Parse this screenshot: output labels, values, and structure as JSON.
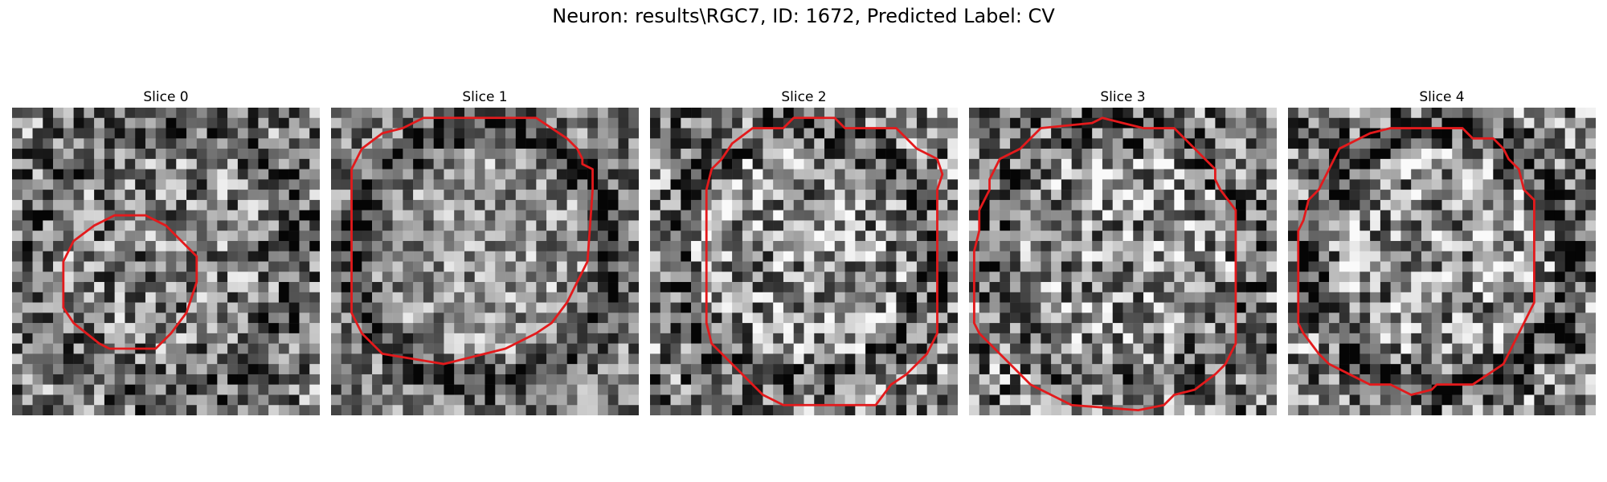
{
  "figure": {
    "suptitle": "Neuron: results\\RGC7, ID: 1672, Predicted Label: CV"
  },
  "contour_color": "#e31a1c",
  "grid_size": 30,
  "panels": [
    {
      "title": "Slice 0",
      "seed": 11,
      "contrast": 0.55,
      "ring": 0.0,
      "blob": 1,
      "contour": [
        [
          10,
          10.5
        ],
        [
          13,
          10.5
        ],
        [
          15,
          11.5
        ],
        [
          17,
          13.5
        ],
        [
          18,
          14.5
        ],
        [
          18,
          17
        ],
        [
          17,
          20
        ],
        [
          15.5,
          22
        ],
        [
          14,
          23.5
        ],
        [
          9.5,
          23.5
        ],
        [
          8.5,
          23
        ],
        [
          6,
          21
        ],
        [
          5,
          19.5
        ],
        [
          5,
          15
        ],
        [
          6,
          13
        ],
        [
          8,
          11.5
        ],
        [
          9,
          11
        ]
      ]
    },
    {
      "title": "Slice 1",
      "seed": 23,
      "contrast": 0.45,
      "ring": 0.9,
      "blob": 0,
      "contour": [
        [
          10,
          1
        ],
        [
          20,
          1
        ],
        [
          21.5,
          2
        ],
        [
          23,
          3
        ],
        [
          24,
          4
        ],
        [
          24.5,
          5
        ],
        [
          24.5,
          5.5
        ],
        [
          25.5,
          6
        ],
        [
          25.5,
          8
        ],
        [
          25,
          15
        ],
        [
          24,
          17
        ],
        [
          23,
          19
        ],
        [
          21.5,
          21
        ],
        [
          20,
          22
        ],
        [
          17,
          23.5
        ],
        [
          15,
          24
        ],
        [
          11,
          25
        ],
        [
          8,
          24.5
        ],
        [
          5,
          24
        ],
        [
          3,
          22
        ],
        [
          2,
          20
        ],
        [
          2,
          6
        ],
        [
          3,
          4
        ],
        [
          5,
          2.5
        ],
        [
          7,
          2
        ],
        [
          8,
          1.5
        ],
        [
          9,
          1
        ]
      ]
    },
    {
      "title": "Slice 2",
      "seed": 37,
      "contrast": 0.6,
      "ring": 0.6,
      "blob": 0,
      "contour": [
        [
          14,
          1
        ],
        [
          18,
          1
        ],
        [
          19,
          2
        ],
        [
          24,
          2
        ],
        [
          25,
          3
        ],
        [
          26,
          4
        ],
        [
          28,
          5
        ],
        [
          28.5,
          6.5
        ],
        [
          28,
          8
        ],
        [
          28,
          22
        ],
        [
          27,
          24
        ],
        [
          25,
          26
        ],
        [
          23.5,
          27
        ],
        [
          22,
          29
        ],
        [
          13,
          29
        ],
        [
          11,
          28
        ],
        [
          10,
          27
        ],
        [
          8,
          25
        ],
        [
          6,
          23
        ],
        [
          5.5,
          21
        ],
        [
          5.5,
          8
        ],
        [
          6,
          6
        ],
        [
          7,
          5
        ],
        [
          8,
          3.5
        ],
        [
          10,
          2
        ],
        [
          13,
          2
        ]
      ]
    },
    {
      "title": "Slice 3",
      "seed": 53,
      "contrast": 0.6,
      "ring": 0.5,
      "blob": 0,
      "contour": [
        [
          7,
          2
        ],
        [
          12,
          1.5
        ],
        [
          13,
          1
        ],
        [
          17,
          2
        ],
        [
          20,
          2
        ],
        [
          22,
          4
        ],
        [
          23,
          5
        ],
        [
          24,
          6
        ],
        [
          24,
          7
        ],
        [
          24.5,
          8
        ],
        [
          26,
          10
        ],
        [
          26,
          23
        ],
        [
          25,
          25
        ],
        [
          24,
          26
        ],
        [
          22,
          27.5
        ],
        [
          20,
          28
        ],
        [
          19,
          29
        ],
        [
          16.5,
          29.5
        ],
        [
          10,
          29
        ],
        [
          8,
          28
        ],
        [
          6,
          27
        ],
        [
          4,
          25
        ],
        [
          3,
          24
        ],
        [
          1,
          22
        ],
        [
          0.5,
          21
        ],
        [
          0.5,
          14
        ],
        [
          1,
          12
        ],
        [
          1,
          10
        ],
        [
          2,
          8
        ],
        [
          2,
          7
        ],
        [
          3,
          5
        ],
        [
          5,
          4
        ],
        [
          6,
          3
        ]
      ]
    },
    {
      "title": "Slice 4",
      "seed": 71,
      "contrast": 0.6,
      "ring": 0.85,
      "blob": 0,
      "contour": [
        [
          10,
          2
        ],
        [
          17,
          2
        ],
        [
          18,
          3
        ],
        [
          20,
          3
        ],
        [
          21,
          4
        ],
        [
          21.5,
          5
        ],
        [
          22.5,
          6
        ],
        [
          23,
          8
        ],
        [
          24,
          9
        ],
        [
          24,
          19
        ],
        [
          23,
          21
        ],
        [
          22,
          23
        ],
        [
          21,
          25
        ],
        [
          18,
          27
        ],
        [
          14.5,
          27
        ],
        [
          14,
          27.5
        ],
        [
          12,
          28
        ],
        [
          10,
          27
        ],
        [
          8,
          27
        ],
        [
          6,
          26
        ],
        [
          4,
          25
        ],
        [
          3,
          24
        ],
        [
          1.5,
          22
        ],
        [
          1,
          21
        ],
        [
          1,
          12
        ],
        [
          1.5,
          11
        ],
        [
          2,
          9
        ],
        [
          3,
          8
        ],
        [
          4,
          6
        ],
        [
          5,
          4
        ],
        [
          7,
          3
        ],
        [
          8,
          2.5
        ]
      ]
    }
  ]
}
